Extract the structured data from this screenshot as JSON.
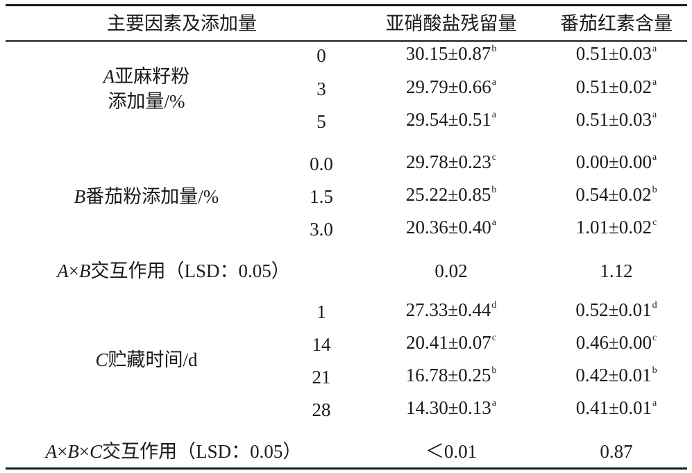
{
  "header": {
    "factor": "主要因素及添加量",
    "nitrite": "亚硝酸盐残留量",
    "lycopene": "番茄红素含量"
  },
  "groups": [
    {
      "label_var": "A",
      "label_l1": "亚麻籽粉",
      "label_l2": "添加量/%",
      "rows": [
        {
          "level": "0",
          "nitrite": "30.15±0.87",
          "nitrite_sup": "b",
          "lycopene": "0.51±0.03",
          "lycopene_sup": "a"
        },
        {
          "level": "3",
          "nitrite": "29.79±0.66",
          "nitrite_sup": "a",
          "lycopene": "0.51±0.02",
          "lycopene_sup": "a"
        },
        {
          "level": "5",
          "nitrite": "29.54±0.51",
          "nitrite_sup": "a",
          "lycopene": "0.51±0.03",
          "lycopene_sup": "a"
        }
      ]
    },
    {
      "label_var": "B",
      "label_l1": "番茄粉添加量/%",
      "rows": [
        {
          "level": "0.0",
          "nitrite": "29.78±0.23",
          "nitrite_sup": "c",
          "lycopene": "0.00±0.00",
          "lycopene_sup": "a"
        },
        {
          "level": "1.5",
          "nitrite": "25.22±0.85",
          "nitrite_sup": "b",
          "lycopene": "0.54±0.02",
          "lycopene_sup": "b"
        },
        {
          "level": "3.0",
          "nitrite": "20.36±0.40",
          "nitrite_sup": "a",
          "lycopene": "1.01±0.02",
          "lycopene_sup": "c"
        }
      ]
    },
    {
      "label_var": "C",
      "label_l1": "贮藏时间/d",
      "rows": [
        {
          "level": "1",
          "nitrite": "27.33±0.44",
          "nitrite_sup": "d",
          "lycopene": "0.52±0.01",
          "lycopene_sup": "d"
        },
        {
          "level": "14",
          "nitrite": "20.41±0.07",
          "nitrite_sup": "c",
          "lycopene": "0.46±0.00",
          "lycopene_sup": "c"
        },
        {
          "level": "21",
          "nitrite": "16.78±0.25",
          "nitrite_sup": "b",
          "lycopene": "0.42±0.01",
          "lycopene_sup": "b"
        },
        {
          "level": "28",
          "nitrite": "14.30±0.13",
          "nitrite_sup": "a",
          "lycopene": "0.41±0.01",
          "lycopene_sup": "a"
        }
      ]
    }
  ],
  "interactions": [
    {
      "var1": "A",
      "op1": "×",
      "var2": "B",
      "op2": "",
      "var3": "",
      "label": "交互作用（LSD：0.05）",
      "nitrite": "0.02",
      "lycopene": "1.12"
    },
    {
      "var1": "A",
      "op1": "×",
      "var2": "B",
      "op2": "×",
      "var3": "C",
      "label": "交互作用（LSD：0.05）",
      "nitrite": "＜0.01",
      "lycopene": "0.87"
    }
  ]
}
